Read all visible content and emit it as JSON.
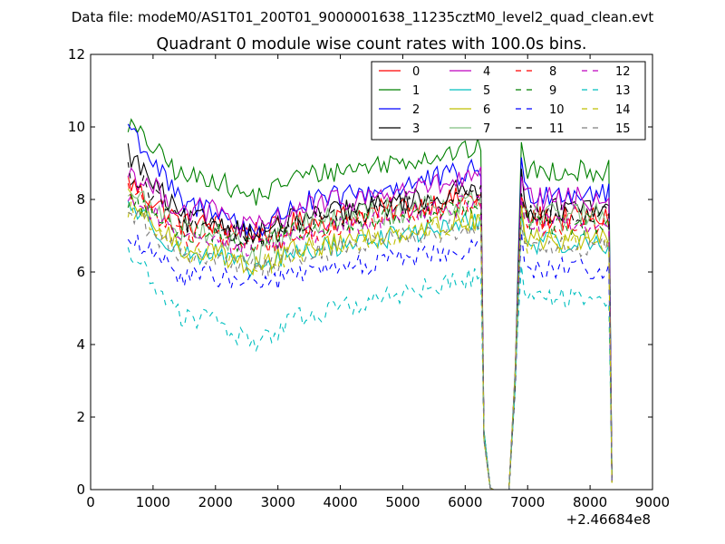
{
  "suptitle": "Data file: modeM0/AS1T01_200T01_9000001638_11235cztM0_level2_quad_clean.evt",
  "chart_data": {
    "type": "line",
    "title": "Quadrant 0 module wise count rates with 100.0s bins.",
    "xlabel": "",
    "ylabel": "",
    "x_offset_label": "+2.46684e8",
    "xlim": [
      0,
      9000
    ],
    "ylim": [
      0,
      12
    ],
    "x_ticks": [
      0,
      1000,
      2000,
      3000,
      4000,
      5000,
      6000,
      7000,
      8000,
      9000
    ],
    "y_ticks": [
      0,
      2,
      4,
      6,
      8,
      10,
      12
    ],
    "x_tick_labels": [
      "0",
      "1000",
      "2000",
      "3000",
      "4000",
      "5000",
      "6000",
      "7000",
      "8000",
      "9000"
    ],
    "y_tick_labels": [
      "0",
      "2",
      "4",
      "6",
      "8",
      "10",
      "12"
    ],
    "grid": false,
    "legend_position": "top-right",
    "legend_columns": 4,
    "series": [
      {
        "name": "0",
        "color": "#ff0000",
        "dash": "solid",
        "start": 8.5,
        "base": 7.3,
        "end": 7.5,
        "amp": 0.35,
        "dip": 0.2
      },
      {
        "name": "1",
        "color": "#008000",
        "dash": "solid",
        "start": 10.1,
        "base": 8.6,
        "end": 8.8,
        "amp": 0.3,
        "dip": 0.5
      },
      {
        "name": "2",
        "color": "#0000ff",
        "dash": "solid",
        "start": 10.1,
        "base": 7.8,
        "end": 8.2,
        "amp": 0.35,
        "dip": 0.6
      },
      {
        "name": "3",
        "color": "#000000",
        "dash": "solid",
        "start": 9.3,
        "base": 7.4,
        "end": 7.7,
        "amp": 0.35,
        "dip": 0.3
      },
      {
        "name": "4",
        "color": "#bf00bf",
        "dash": "solid",
        "start": 8.8,
        "base": 7.7,
        "end": 8.0,
        "amp": 0.35,
        "dip": 0.5
      },
      {
        "name": "5",
        "color": "#00bfbf",
        "dash": "solid",
        "start": 7.9,
        "base": 6.5,
        "end": 6.8,
        "amp": 0.3,
        "dip": 0.4
      },
      {
        "name": "6",
        "color": "#bfbf00",
        "dash": "solid",
        "start": 8.0,
        "base": 6.6,
        "end": 6.9,
        "amp": 0.3,
        "dip": 0.4
      },
      {
        "name": "7",
        "color": "#7fbf7f",
        "dash": "solid",
        "start": 8.2,
        "base": 7.2,
        "end": 7.5,
        "amp": 0.4,
        "dip": 0.7
      },
      {
        "name": "8",
        "color": "#ff0000",
        "dash": "dashed",
        "start": 8.3,
        "base": 7.0,
        "end": 7.3,
        "amp": 0.3,
        "dip": 0.3
      },
      {
        "name": "9",
        "color": "#008000",
        "dash": "dashed",
        "start": 8.0,
        "base": 7.1,
        "end": 7.3,
        "amp": 0.3,
        "dip": 0.3
      },
      {
        "name": "10",
        "color": "#0000ff",
        "dash": "dashed",
        "start": 6.9,
        "base": 5.9,
        "end": 6.1,
        "amp": 0.3,
        "dip": 0.2
      },
      {
        "name": "11",
        "color": "#000000",
        "dash": "dashed",
        "start": 8.8,
        "base": 7.3,
        "end": 7.6,
        "amp": 0.3,
        "dip": 0.4
      },
      {
        "name": "12",
        "color": "#bf00bf",
        "dash": "dashed",
        "start": 8.1,
        "base": 7.0,
        "end": 7.3,
        "amp": 0.3,
        "dip": 0.3
      },
      {
        "name": "13",
        "color": "#00bfbf",
        "dash": "dashed",
        "start": 6.6,
        "base": 4.7,
        "end": 5.3,
        "amp": 0.3,
        "dip": 0.6
      },
      {
        "name": "14",
        "color": "#bfbf00",
        "dash": "dashed",
        "start": 7.8,
        "base": 6.5,
        "end": 6.8,
        "amp": 0.3,
        "dip": 0.3
      },
      {
        "name": "15",
        "color": "#7f7f7f",
        "dash": "dashed",
        "start": 7.7,
        "base": 6.4,
        "end": 6.7,
        "amp": 0.3,
        "dip": 0.3
      }
    ],
    "time_profile": {
      "x_start": 600,
      "x_step": 50,
      "seg1_end": 6250,
      "gap_points": [
        6300,
        6400,
        6450,
        6700,
        6800
      ],
      "gap_values": [
        1.5,
        0.05,
        0.0,
        0.0,
        3.0
      ],
      "seg2_start": 6900,
      "seg2_end": 8300,
      "final_x": 8350,
      "final_value": 0.15
    }
  }
}
